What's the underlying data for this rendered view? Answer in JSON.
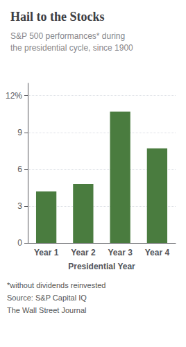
{
  "chart_data": {
    "type": "bar",
    "title": "Hail to the Stocks",
    "subtitle": "S&P 500 performances* during\nthe presidential cycle, since 1900",
    "categories": [
      "Year 1",
      "Year 2",
      "Year 3",
      "Year 4"
    ],
    "values": [
      4.2,
      4.8,
      10.7,
      7.7
    ],
    "color": "#4a7c3f",
    "xlabel": "Presidential Year",
    "ylim": [
      0,
      13
    ],
    "yticks": [
      0,
      3,
      6,
      9,
      {
        "value": 12,
        "label": "12%"
      }
    ],
    "grid": true,
    "annotations": [
      "*without dividends reinvested",
      "Source: S&P Capital IQ",
      "The Wall Street Journal"
    ]
  }
}
